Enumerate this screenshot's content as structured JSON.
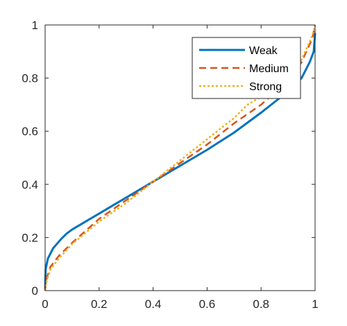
{
  "chart_data": {
    "type": "line",
    "title": "",
    "xlabel": "",
    "ylabel": "",
    "xlim": [
      0,
      1
    ],
    "ylim": [
      0,
      1
    ],
    "xticks": [
      "0",
      "0.2",
      "0.4",
      "0.6",
      "0.8",
      "1"
    ],
    "yticks": [
      "0",
      "0.2",
      "0.4",
      "0.6",
      "0.8",
      "1"
    ],
    "grid": false,
    "legend": "top-right",
    "series": [
      {
        "name": "Weak",
        "color": "#0072BD",
        "style": "solid",
        "x": [
          0,
          0.002,
          0.01,
          0.03,
          0.06,
          0.08,
          0.1,
          0.15,
          0.2,
          0.3,
          0.4,
          0.5,
          0.6,
          0.7,
          0.8,
          0.9,
          0.95,
          0.98,
          0.995,
          1
        ],
        "y": [
          0,
          0.08,
          0.12,
          0.16,
          0.195,
          0.215,
          0.23,
          0.26,
          0.29,
          0.35,
          0.41,
          0.47,
          0.53,
          0.595,
          0.67,
          0.75,
          0.8,
          0.86,
          0.9,
          0.97
        ]
      },
      {
        "name": "Medium",
        "color": "#D95319",
        "style": "dashed",
        "x": [
          0,
          0.002,
          0.01,
          0.02,
          0.05,
          0.1,
          0.2,
          0.3,
          0.4,
          0.5,
          0.6,
          0.7,
          0.8,
          0.9,
          0.95,
          0.99,
          1
        ],
        "y": [
          0,
          0.03,
          0.06,
          0.09,
          0.13,
          0.18,
          0.27,
          0.34,
          0.41,
          0.48,
          0.55,
          0.63,
          0.7,
          0.79,
          0.86,
          0.95,
          1.0
        ]
      },
      {
        "name": "Strong",
        "color": "#EDB120",
        "style": "dotted",
        "x": [
          0,
          0.002,
          0.01,
          0.02,
          0.05,
          0.1,
          0.2,
          0.3,
          0.4,
          0.5,
          0.55,
          0.6,
          0.65,
          0.7,
          0.75,
          0.8,
          0.9,
          0.95,
          0.99,
          1
        ],
        "y": [
          0,
          0.02,
          0.05,
          0.08,
          0.12,
          0.175,
          0.26,
          0.33,
          0.41,
          0.49,
          0.53,
          0.57,
          0.61,
          0.65,
          0.7,
          0.73,
          0.8,
          0.87,
          0.96,
          1.0
        ]
      }
    ]
  }
}
